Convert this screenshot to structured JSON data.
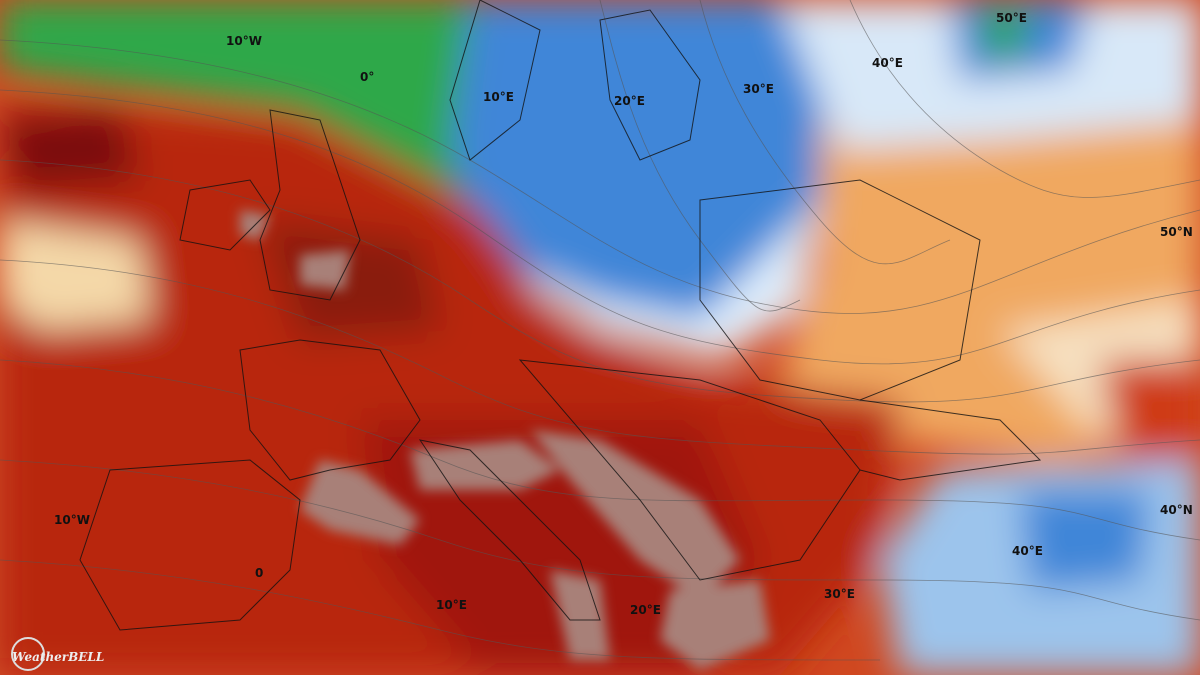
{
  "map": {
    "labels": [
      "10°W",
      "0°",
      "10°E",
      "20°E",
      "30°E",
      "40°E",
      "50°E",
      "50°N",
      "40°N",
      "40°E",
      "30°E",
      "20°E",
      "10°E",
      "0",
      "10°W"
    ],
    "logo": "WeatherBELL"
  }
}
